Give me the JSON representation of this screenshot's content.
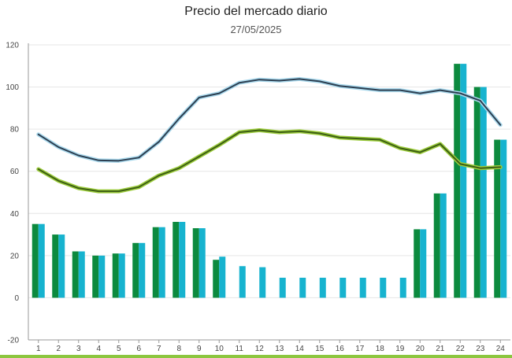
{
  "header": {
    "title": "Precio del mercado diario",
    "date": "27/05/2025"
  },
  "colors": {
    "bar_dark_green": "#0c8a3e",
    "bar_cyan": "#17b3cf",
    "line_dark": "#2c3e50",
    "line_light_blue": "#a9d8ec",
    "line_dark_green": "#3c5e14",
    "line_lime": "#9ccc3c",
    "grid": "#e6e6e6",
    "axis": "#999999",
    "bottom_bar": "#8cc63f"
  },
  "chart_data": {
    "type": "bar+line",
    "title": "Precio del mercado diario",
    "subtitle": "27/05/2025",
    "categories": [
      "1",
      "2",
      "3",
      "4",
      "5",
      "6",
      "7",
      "8",
      "9",
      "10",
      "11",
      "12",
      "13",
      "14",
      "15",
      "16",
      "17",
      "18",
      "19",
      "20",
      "21",
      "22",
      "23",
      "24"
    ],
    "ylim": [
      -20,
      120
    ],
    "yticks": [
      -20,
      0,
      20,
      40,
      60,
      80,
      100,
      120
    ],
    "grid": true,
    "bar_series": [
      {
        "color_key": "bar_dark_green",
        "values": [
          35,
          30,
          22,
          20,
          21,
          26,
          33.5,
          36,
          33,
          18,
          null,
          null,
          null,
          null,
          null,
          null,
          null,
          null,
          null,
          32.5,
          49.5,
          111,
          100,
          75
        ]
      },
      {
        "color_key": "bar_cyan",
        "values": [
          35,
          30,
          22,
          20,
          21,
          26,
          33.5,
          36,
          33,
          19.5,
          15,
          14.5,
          9.5,
          9.5,
          9.5,
          9.5,
          9.5,
          9.5,
          9.5,
          32.5,
          49.5,
          111,
          100,
          75
        ]
      }
    ],
    "line_series": [
      {
        "color_key": "line_dark",
        "halo_key": "line_light_blue",
        "values": [
          77.5,
          71.5,
          67.5,
          65.2,
          65,
          66.5,
          74,
          85,
          95,
          97,
          102,
          103.5,
          103,
          103.8,
          102.7,
          100.5,
          99.5,
          98.5,
          98.5,
          97,
          98.5,
          97,
          93.5,
          82
        ]
      },
      {
        "color_key": "line_dark_green",
        "halo_key": "line_lime",
        "values": [
          61,
          55.5,
          52,
          50.5,
          50.5,
          52.5,
          58,
          61.5,
          67,
          72.5,
          78.5,
          79.5,
          78.5,
          79,
          78,
          76,
          75.5,
          75,
          71,
          69,
          73,
          63.5,
          61.5,
          62
        ]
      }
    ]
  }
}
